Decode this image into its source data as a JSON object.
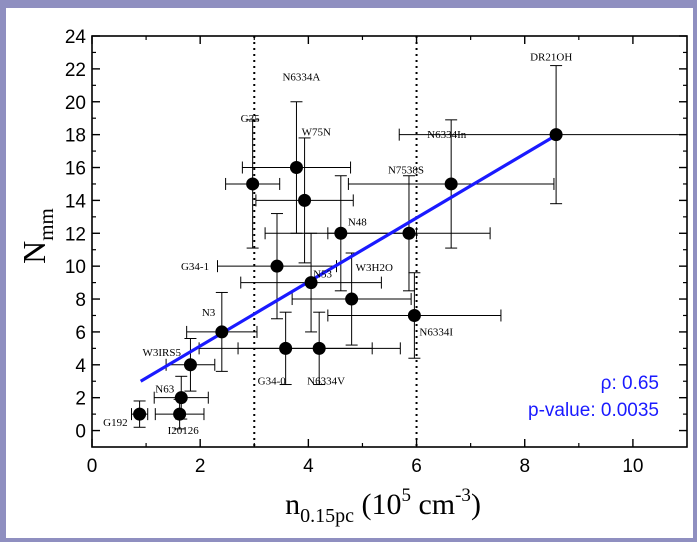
{
  "chart_data": {
    "type": "scatter",
    "xlim": [
      0,
      11
    ],
    "ylim": [
      -1,
      24
    ],
    "x_ticks": [
      0,
      2,
      4,
      6,
      8,
      10
    ],
    "y_ticks": [
      0,
      2,
      4,
      6,
      8,
      10,
      12,
      14,
      16,
      18,
      20,
      22,
      24
    ],
    "xlabel": {
      "base": "n",
      "sub": "0.15pc",
      "paren_open": " (10",
      "sup1": "5",
      "unit": " cm",
      "sup2": "-3",
      "paren_close": ")"
    },
    "ylabel": {
      "base": "N",
      "sub": "mm"
    },
    "vlines": [
      3,
      6
    ],
    "fit_line": {
      "x": [
        0.9,
        8.6
      ],
      "y": [
        3.0,
        18.0
      ],
      "color": "#1a1aff"
    },
    "stats": {
      "rho": "ρ: 0.65",
      "pvalue": "p-value: 0.0035"
    },
    "points": [
      {
        "label": "G192",
        "x": 0.88,
        "y": 1,
        "xerr": 0.15,
        "yerr": 0.8
      },
      {
        "label": "I20126",
        "x": 1.62,
        "y": 1,
        "xerr": 0.45,
        "yerr": 0.9
      },
      {
        "label": "N63",
        "x": 1.65,
        "y": 2,
        "xerr": 0.5,
        "yerr": 1.3
      },
      {
        "label": "W3IRS5",
        "x": 1.82,
        "y": 4,
        "xerr": 0.45,
        "yerr": 1.6
      },
      {
        "label": "N3",
        "x": 2.4,
        "y": 6,
        "xerr": 0.65,
        "yerr": 2.4
      },
      {
        "label": "G34-1",
        "x": 3.42,
        "y": 10,
        "xerr": 1.1,
        "yerr": 3.2
      },
      {
        "label": "G35",
        "x": 2.97,
        "y": 15,
        "xerr": 0.5,
        "yerr": 3.9
      },
      {
        "label": "G34-0",
        "x": 3.58,
        "y": 5,
        "xerr": 1.6,
        "yerr": 2.2
      },
      {
        "label": "N6334A",
        "x": 3.78,
        "y": 16,
        "xerr": 1.0,
        "yerr": 4.0
      },
      {
        "label": "W75N",
        "x": 3.93,
        "y": 14,
        "xerr": 0.9,
        "yerr": 3.8
      },
      {
        "label": "N53",
        "x": 4.05,
        "y": 9,
        "xerr": 1.3,
        "yerr": 3.0
      },
      {
        "label": "N6334V",
        "x": 4.2,
        "y": 5,
        "xerr": 1.5,
        "yerr": 2.2
      },
      {
        "label": "N48",
        "x": 4.6,
        "y": 12,
        "xerr": 1.4,
        "yerr": 3.5
      },
      {
        "label": "W3H2O",
        "x": 4.8,
        "y": 8,
        "xerr": 1.1,
        "yerr": 2.8
      },
      {
        "label": "N7538S",
        "x": 5.86,
        "y": 12,
        "xerr": 1.5,
        "yerr": 3.5
      },
      {
        "label": "N6334I",
        "x": 5.96,
        "y": 7,
        "xerr": 1.6,
        "yerr": 2.6
      },
      {
        "label": "N6334In",
        "x": 6.64,
        "y": 15,
        "xerr": 1.9,
        "yerr": 3.9
      },
      {
        "label": "DR21OH",
        "x": 8.58,
        "y": 18,
        "xerr": 2.9,
        "yerr": 4.2
      }
    ]
  }
}
